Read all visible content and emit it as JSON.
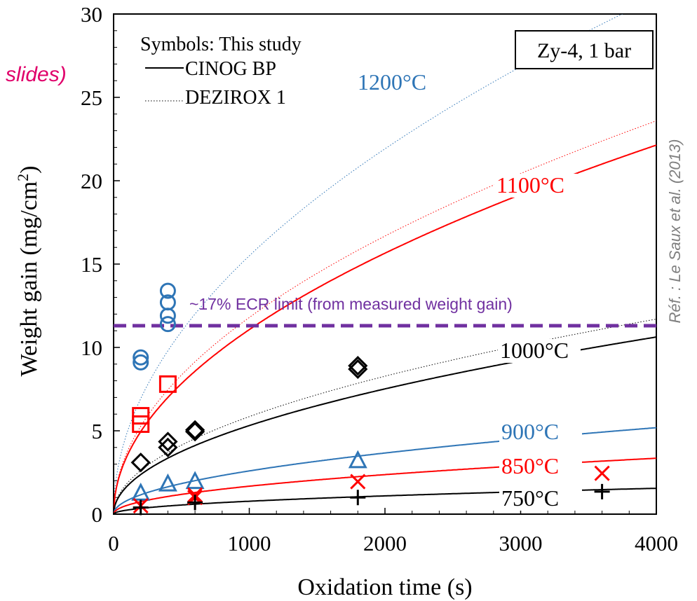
{
  "chart_data": {
    "type": "scatter",
    "xlabel": "Oxidation time (s)",
    "ylabel": "Weight gain (mg/cm",
    "ylabel_sup": "2",
    "ylabel_close": ")",
    "xlim": [
      0,
      4000
    ],
    "ylim": [
      0,
      30
    ],
    "x_ticks": [
      "0",
      "1000",
      "2000",
      "3000",
      "4000"
    ],
    "y_ticks": [
      "0",
      "5",
      "10",
      "15",
      "20",
      "25",
      "30"
    ],
    "grid": false,
    "material_box": "Zy-4, 1 bar",
    "legend": {
      "title": "Symbols: This study",
      "entries": [
        {
          "label": "CINOG BP",
          "style": "solid"
        },
        {
          "label": "DEZIROX 1",
          "style": "dotted"
        }
      ]
    },
    "ecr_limit": {
      "y": 11.3,
      "label": "~17% ECR limit (from measured weight gain)",
      "color": "#7030a0"
    },
    "series": [
      {
        "name": "1200°C",
        "color": "#2e75b6",
        "marker": "circle",
        "points": [
          [
            200,
            9.1
          ],
          [
            200,
            9.4
          ],
          [
            400,
            11.4
          ],
          [
            400,
            11.9
          ],
          [
            400,
            12.7
          ],
          [
            400,
            13.4
          ]
        ],
        "cinog_k": null,
        "dezirox_k": 0.49
      },
      {
        "name": "1100°C",
        "color": "#ff0000",
        "marker": "square",
        "points": [
          [
            200,
            5.4
          ],
          [
            200,
            5.9
          ],
          [
            400,
            7.8
          ]
        ],
        "cinog_k": 0.35,
        "dezirox_k": 0.373
      },
      {
        "name": "1000°C",
        "color": "#000000",
        "marker": "diamond",
        "points": [
          [
            200,
            3.1
          ],
          [
            400,
            4.0
          ],
          [
            400,
            4.35
          ],
          [
            600,
            4.95
          ],
          [
            600,
            5.05
          ],
          [
            1800,
            8.7
          ],
          [
            1800,
            8.9
          ]
        ],
        "cinog_k": 0.168,
        "dezirox_k": 0.185
      },
      {
        "name": "900°C",
        "color": "#2e75b6",
        "marker": "triangle",
        "points": [
          [
            200,
            1.25
          ],
          [
            400,
            1.8
          ],
          [
            600,
            1.95
          ],
          [
            1800,
            3.2
          ]
        ],
        "cinog_k": 0.082,
        "dezirox_k": null
      },
      {
        "name": "850°C",
        "color": "#ff0000",
        "marker": "x",
        "points": [
          [
            200,
            0.5
          ],
          [
            600,
            1.0
          ],
          [
            600,
            1.15
          ],
          [
            1800,
            1.95
          ],
          [
            3600,
            2.45
          ]
        ],
        "cinog_k": 0.053,
        "dezirox_k": null
      },
      {
        "name": "750°C",
        "color": "#000000",
        "marker": "plus",
        "points": [
          [
            200,
            0.4
          ],
          [
            600,
            0.7
          ],
          [
            1800,
            1.0
          ],
          [
            3600,
            1.35
          ]
        ],
        "cinog_k": 0.0245,
        "dezirox_k": null
      }
    ]
  },
  "side_label": "slides)",
  "reference": "Réf. : Le Saux et al. (2013)",
  "colors": {
    "blue": "#2e75b6",
    "red": "#ff0000",
    "purple": "#7030a0",
    "slides_text": "#e0006a",
    "reference_text": "#7f7f7f"
  }
}
